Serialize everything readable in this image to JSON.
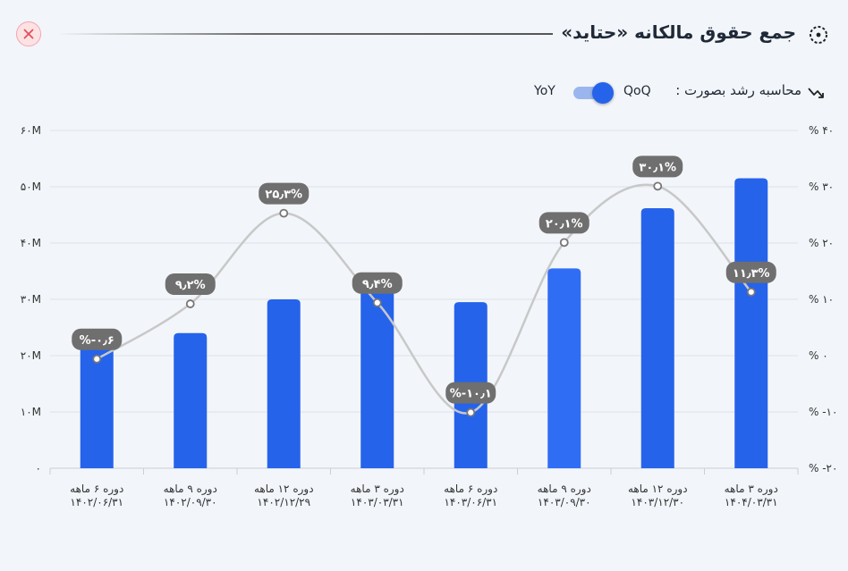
{
  "header": {
    "title": "جمع حقوق مالکانه «حتاید»",
    "title_icon": "target-icon",
    "close_icon": "close-icon"
  },
  "controls": {
    "growth_label": "محاسبه رشد بصورت :",
    "growth_icon": "trend-arrow-icon",
    "qoq_label": "QoQ",
    "yoy_label": "YoY",
    "toggle_selected": "QoQ"
  },
  "colors": {
    "bar": "#2563eb",
    "bar_highlight": "#2f6df5",
    "line": "#c8c8c8",
    "badge": "#6f6f6f",
    "close_bg": "#fde2e4",
    "close_x": "#e0505e"
  },
  "chart_data": {
    "type": "bar",
    "categories": [
      [
        "دوره ۶ ماهه",
        "۱۴۰۲/۰۶/۳۱"
      ],
      [
        "دوره ۹ ماهه",
        "۱۴۰۲/۰۹/۳۰"
      ],
      [
        "دوره ۱۲ ماهه",
        "۱۴۰۲/۱۲/۲۹"
      ],
      [
        "دوره ۳ ماهه",
        "۱۴۰۳/۰۳/۳۱"
      ],
      [
        "دوره ۶ ماهه",
        "۱۴۰۳/۰۶/۳۱"
      ],
      [
        "دوره ۹ ماهه",
        "۱۴۰۳/۰۹/۳۰"
      ],
      [
        "دوره ۱۲ ماهه",
        "۱۴۰۳/۱۲/۳۰"
      ],
      [
        "دوره ۳ ماهه",
        "۱۴۰۴/۰۳/۳۱"
      ]
    ],
    "series": [
      {
        "type": "bar",
        "axis": "left",
        "values": [
          22000000,
          24000000,
          30000000,
          32000000,
          29500000,
          35500000,
          46200000,
          51500000
        ]
      },
      {
        "type": "line",
        "axis": "right",
        "values": [
          -0.6,
          9.2,
          25.3,
          9.4,
          -10.1,
          20.1,
          30.1,
          11.3
        ],
        "labels": [
          "%-۰٫۶",
          "۹٫۲%",
          "۲۵٫۳%",
          "۹٫۴%",
          "%-۱۰٫۱",
          "۲۰٫۱%",
          "۳۰٫۱%",
          "۱۱٫۳%"
        ]
      }
    ],
    "ylim_left": [
      0,
      60000000
    ],
    "yticks_left": [
      "۰",
      "۱۰M",
      "۲۰M",
      "۳۰M",
      "۴۰M",
      "۵۰M",
      "۶۰M"
    ],
    "ylim_right": [
      -20,
      40
    ],
    "yticks_right": [
      "% -۲۰",
      "% -۱۰",
      "% ۰",
      "% ۱۰",
      "% ۲۰",
      "% ۳۰",
      "% ۴۰"
    ],
    "grid": true
  }
}
